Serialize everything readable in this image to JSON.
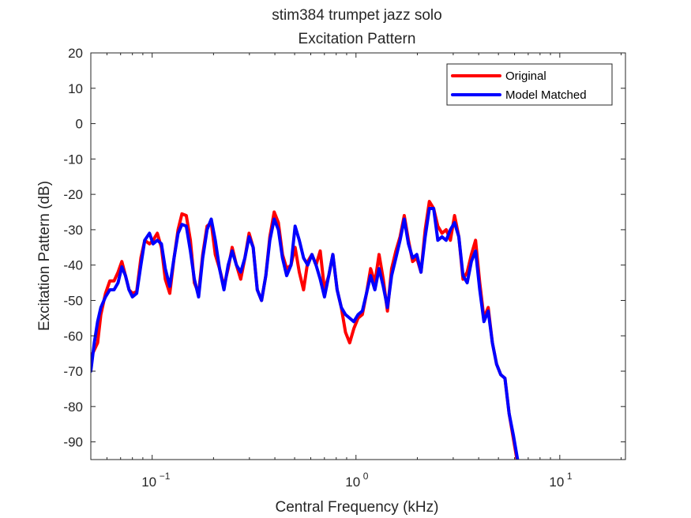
{
  "chart_data": {
    "type": "line",
    "title": "stim384 trumpet jazz solo",
    "subtitle": "Excitation Pattern",
    "xlabel": "Central Frequency (kHz)",
    "ylabel": "Excitation Pattern (dB)",
    "x_scale": "log",
    "xlim": [
      0.05,
      21
    ],
    "ylim": [
      -95,
      20
    ],
    "x_ticks": [
      {
        "value": 0.1,
        "base": "10",
        "exp": "−1"
      },
      {
        "value": 1,
        "base": "10",
        "exp": "0"
      },
      {
        "value": 10,
        "base": "10",
        "exp": "1"
      }
    ],
    "y_ticks": [
      20,
      10,
      0,
      -10,
      -20,
      -30,
      -40,
      -50,
      -60,
      -70,
      -80,
      -90
    ],
    "grid": false,
    "legend_position": "top-right",
    "series": [
      {
        "name": "Original",
        "color": "#ff0000",
        "points": [
          [
            0.05,
            -66
          ],
          [
            0.052,
            -64
          ],
          [
            0.054,
            -62
          ],
          [
            0.056,
            -54
          ],
          [
            0.059,
            -48
          ],
          [
            0.062,
            -44.5
          ],
          [
            0.065,
            -44.5
          ],
          [
            0.068,
            -42
          ],
          [
            0.071,
            -39
          ],
          [
            0.074,
            -43
          ],
          [
            0.077,
            -47
          ],
          [
            0.08,
            -48
          ],
          [
            0.084,
            -47.5
          ],
          [
            0.088,
            -38
          ],
          [
            0.092,
            -33
          ],
          [
            0.097,
            -34
          ],
          [
            0.101,
            -33
          ],
          [
            0.106,
            -31
          ],
          [
            0.111,
            -35
          ],
          [
            0.116,
            -44
          ],
          [
            0.122,
            -48
          ],
          [
            0.128,
            -38
          ],
          [
            0.134,
            -30
          ],
          [
            0.14,
            -25.5
          ],
          [
            0.147,
            -26
          ],
          [
            0.154,
            -33
          ],
          [
            0.161,
            -45
          ],
          [
            0.169,
            -48
          ],
          [
            0.177,
            -37
          ],
          [
            0.186,
            -29
          ],
          [
            0.195,
            -28
          ],
          [
            0.204,
            -37
          ],
          [
            0.214,
            -41
          ],
          [
            0.225,
            -46
          ],
          [
            0.236,
            -41
          ],
          [
            0.247,
            -35
          ],
          [
            0.259,
            -40
          ],
          [
            0.272,
            -44
          ],
          [
            0.285,
            -38
          ],
          [
            0.299,
            -31
          ],
          [
            0.313,
            -35
          ],
          [
            0.328,
            -47
          ],
          [
            0.344,
            -50
          ],
          [
            0.361,
            -43
          ],
          [
            0.378,
            -32
          ],
          [
            0.397,
            -25
          ],
          [
            0.416,
            -28
          ],
          [
            0.436,
            -37
          ],
          [
            0.457,
            -41
          ],
          [
            0.48,
            -40
          ],
          [
            0.503,
            -35
          ],
          [
            0.527,
            -42
          ],
          [
            0.553,
            -47
          ],
          [
            0.58,
            -39
          ],
          [
            0.608,
            -37
          ],
          [
            0.637,
            -40
          ],
          [
            0.668,
            -36
          ],
          [
            0.701,
            -47
          ],
          [
            0.735,
            -43
          ],
          [
            0.77,
            -37
          ],
          [
            0.808,
            -47
          ],
          [
            0.847,
            -52
          ],
          [
            0.888,
            -59
          ],
          [
            0.931,
            -62
          ],
          [
            0.976,
            -58
          ],
          [
            1.024,
            -55
          ],
          [
            1.074,
            -54
          ],
          [
            1.126,
            -48
          ],
          [
            1.18,
            -41
          ],
          [
            1.238,
            -45
          ],
          [
            1.298,
            -37
          ],
          [
            1.361,
            -44
          ],
          [
            1.427,
            -53
          ],
          [
            1.496,
            -41
          ],
          [
            1.569,
            -36
          ],
          [
            1.645,
            -32
          ],
          [
            1.725,
            -26
          ],
          [
            1.809,
            -33
          ],
          [
            1.897,
            -39
          ],
          [
            1.989,
            -38
          ],
          [
            2.085,
            -42
          ],
          [
            2.186,
            -30
          ],
          [
            2.292,
            -22
          ],
          [
            2.404,
            -24
          ],
          [
            2.52,
            -29
          ],
          [
            2.643,
            -31
          ],
          [
            2.771,
            -30
          ],
          [
            2.906,
            -33
          ],
          [
            3.047,
            -26
          ],
          [
            3.195,
            -32
          ],
          [
            3.35,
            -44
          ],
          [
            3.513,
            -42
          ],
          [
            3.683,
            -37
          ],
          [
            3.862,
            -33
          ],
          [
            4.05,
            -45
          ],
          [
            4.246,
            -55
          ],
          [
            4.453,
            -52
          ],
          [
            4.669,
            -62
          ],
          [
            4.896,
            -68
          ],
          [
            5.133,
            -71
          ],
          [
            5.382,
            -72
          ],
          [
            5.644,
            -82
          ],
          [
            5.918,
            -89
          ],
          [
            6.205,
            -96
          ]
        ]
      },
      {
        "name": "Model Matched",
        "color": "#0000ff",
        "points": [
          [
            0.05,
            -70
          ],
          [
            0.052,
            -62
          ],
          [
            0.054,
            -56
          ],
          [
            0.056,
            -52
          ],
          [
            0.059,
            -49
          ],
          [
            0.062,
            -47
          ],
          [
            0.065,
            -47
          ],
          [
            0.068,
            -45
          ],
          [
            0.071,
            -40.5
          ],
          [
            0.074,
            -43
          ],
          [
            0.077,
            -47
          ],
          [
            0.08,
            -49
          ],
          [
            0.084,
            -48
          ],
          [
            0.088,
            -40
          ],
          [
            0.092,
            -33
          ],
          [
            0.097,
            -31
          ],
          [
            0.101,
            -34
          ],
          [
            0.106,
            -33
          ],
          [
            0.111,
            -34
          ],
          [
            0.116,
            -41
          ],
          [
            0.122,
            -46
          ],
          [
            0.128,
            -38
          ],
          [
            0.134,
            -31
          ],
          [
            0.14,
            -28.5
          ],
          [
            0.147,
            -29
          ],
          [
            0.154,
            -36
          ],
          [
            0.161,
            -44
          ],
          [
            0.169,
            -49
          ],
          [
            0.177,
            -38
          ],
          [
            0.186,
            -30
          ],
          [
            0.195,
            -27
          ],
          [
            0.204,
            -33
          ],
          [
            0.214,
            -41
          ],
          [
            0.225,
            -47
          ],
          [
            0.236,
            -40
          ],
          [
            0.247,
            -36
          ],
          [
            0.259,
            -40
          ],
          [
            0.272,
            -42
          ],
          [
            0.285,
            -38
          ],
          [
            0.299,
            -32
          ],
          [
            0.313,
            -35
          ],
          [
            0.328,
            -47
          ],
          [
            0.344,
            -50
          ],
          [
            0.361,
            -43
          ],
          [
            0.378,
            -33
          ],
          [
            0.397,
            -27
          ],
          [
            0.416,
            -30
          ],
          [
            0.436,
            -38
          ],
          [
            0.457,
            -43
          ],
          [
            0.48,
            -40
          ],
          [
            0.503,
            -29
          ],
          [
            0.527,
            -33
          ],
          [
            0.553,
            -38
          ],
          [
            0.58,
            -40
          ],
          [
            0.608,
            -37
          ],
          [
            0.637,
            -40
          ],
          [
            0.668,
            -44
          ],
          [
            0.701,
            -49
          ],
          [
            0.735,
            -43
          ],
          [
            0.77,
            -37
          ],
          [
            0.808,
            -47
          ],
          [
            0.847,
            -52
          ],
          [
            0.888,
            -54
          ],
          [
            0.931,
            -55
          ],
          [
            0.976,
            -56
          ],
          [
            1.024,
            -54
          ],
          [
            1.074,
            -53
          ],
          [
            1.126,
            -48
          ],
          [
            1.18,
            -43
          ],
          [
            1.238,
            -47
          ],
          [
            1.298,
            -41
          ],
          [
            1.361,
            -46
          ],
          [
            1.427,
            -52
          ],
          [
            1.496,
            -43
          ],
          [
            1.569,
            -38
          ],
          [
            1.645,
            -33
          ],
          [
            1.725,
            -27
          ],
          [
            1.809,
            -34
          ],
          [
            1.897,
            -38
          ],
          [
            1.989,
            -37
          ],
          [
            2.085,
            -42
          ],
          [
            2.186,
            -32
          ],
          [
            2.292,
            -24
          ],
          [
            2.404,
            -24
          ],
          [
            2.52,
            -33
          ],
          [
            2.643,
            -32
          ],
          [
            2.771,
            -33
          ],
          [
            2.906,
            -30
          ],
          [
            3.047,
            -28
          ],
          [
            3.195,
            -32
          ],
          [
            3.35,
            -43
          ],
          [
            3.513,
            -45
          ],
          [
            3.683,
            -39
          ],
          [
            3.862,
            -36
          ],
          [
            4.05,
            -47
          ],
          [
            4.246,
            -56
          ],
          [
            4.453,
            -53
          ],
          [
            4.669,
            -62
          ],
          [
            4.896,
            -68
          ],
          [
            5.133,
            -71
          ],
          [
            5.382,
            -72
          ],
          [
            5.644,
            -82
          ],
          [
            5.918,
            -88
          ],
          [
            6.205,
            -95
          ]
        ]
      }
    ]
  }
}
